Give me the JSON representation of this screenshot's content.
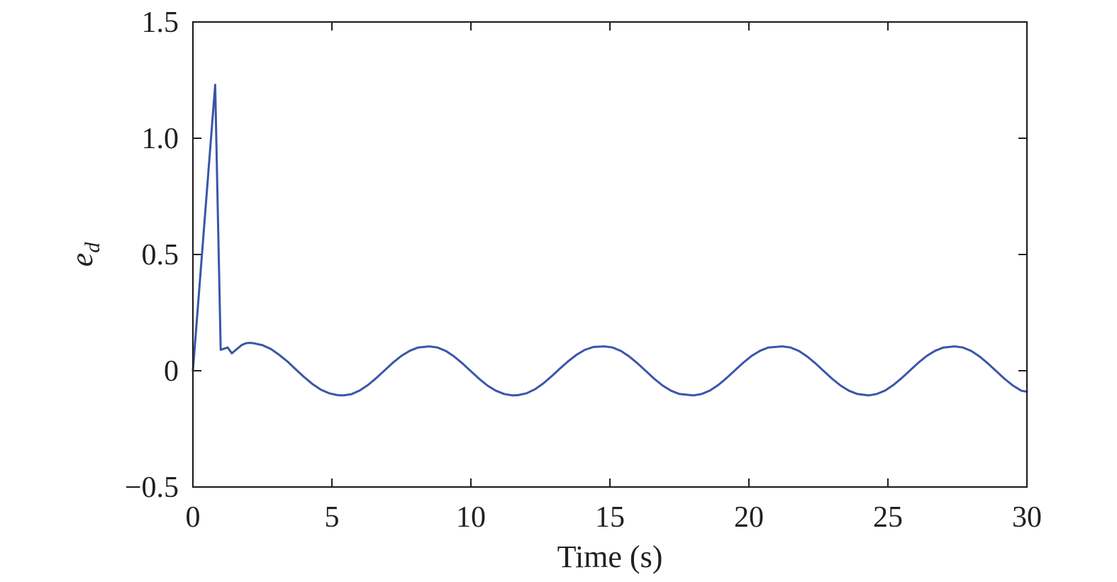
{
  "chart_data": {
    "type": "line",
    "title": "",
    "xlabel": "Time (s)",
    "ylabel_base": "e",
    "ylabel_sub": "d",
    "xlim": [
      0,
      30
    ],
    "ylim": [
      -0.5,
      1.5
    ],
    "grid": false,
    "legend": "none",
    "x_ticks": [
      0,
      5,
      10,
      15,
      20,
      25,
      30
    ],
    "x_tick_labels": [
      "0",
      "5",
      "10",
      "15",
      "20",
      "25",
      "30"
    ],
    "y_ticks": [
      -0.5,
      0,
      0.5,
      1.0,
      1.5
    ],
    "y_tick_labels": [
      "−0.5",
      "0",
      "0.5",
      "1.0",
      "1.5"
    ],
    "line_color": "#3a56a8",
    "series": [
      {
        "x": [
          0,
          0.8,
          1.0,
          1.25,
          1.4,
          1.5,
          1.75,
          1.9,
          2.05,
          2.2,
          2.5,
          2.8,
          3.1,
          3.4,
          3.7,
          4.0,
          4.3,
          4.6,
          4.9,
          5.2,
          5.4,
          5.7,
          6.0,
          6.3,
          6.6,
          6.9,
          7.2,
          7.5,
          7.8,
          8.1,
          8.5,
          8.8,
          9.1,
          9.4,
          9.7,
          10.0,
          10.3,
          10.6,
          10.9,
          11.2,
          11.5,
          11.7,
          12.0,
          12.3,
          12.6,
          12.9,
          13.2,
          13.5,
          13.8,
          14.1,
          14.4,
          14.8,
          15.1,
          15.4,
          15.7,
          16.0,
          16.3,
          16.6,
          16.9,
          17.2,
          17.5,
          18.0,
          18.3,
          18.6,
          18.9,
          19.2,
          19.5,
          19.8,
          20.1,
          20.4,
          20.7,
          21.2,
          21.5,
          21.8,
          22.1,
          22.4,
          22.7,
          23.0,
          23.3,
          23.6,
          23.9,
          24.3,
          24.6,
          24.9,
          25.2,
          25.5,
          25.8,
          26.1,
          26.4,
          26.7,
          27.0,
          27.4,
          27.7,
          28.0,
          28.3,
          28.6,
          28.9,
          29.2,
          29.5,
          29.8,
          30.0
        ],
        "y": [
          0,
          1.23,
          0.09,
          0.1,
          0.075,
          0.085,
          0.11,
          0.118,
          0.12,
          0.118,
          0.11,
          0.094,
          0.069,
          0.04,
          0.006,
          -0.027,
          -0.057,
          -0.081,
          -0.097,
          -0.105,
          -0.106,
          -0.101,
          -0.085,
          -0.061,
          -0.031,
          0.002,
          0.035,
          0.064,
          0.086,
          0.1,
          0.105,
          0.1,
          0.085,
          0.061,
          0.031,
          -0.002,
          -0.035,
          -0.064,
          -0.086,
          -0.1,
          -0.106,
          -0.105,
          -0.097,
          -0.08,
          -0.055,
          -0.024,
          0.009,
          0.041,
          0.069,
          0.09,
          0.102,
          0.105,
          0.1,
          0.085,
          0.061,
          0.031,
          -0.002,
          -0.035,
          -0.064,
          -0.086,
          -0.1,
          -0.106,
          -0.1,
          -0.085,
          -0.061,
          -0.031,
          0.002,
          0.035,
          0.064,
          0.086,
          0.1,
          0.105,
          0.1,
          0.085,
          0.061,
          0.031,
          -0.002,
          -0.035,
          -0.064,
          -0.086,
          -0.1,
          -0.106,
          -0.1,
          -0.085,
          -0.061,
          -0.031,
          0.002,
          0.035,
          0.064,
          0.086,
          0.1,
          0.105,
          0.1,
          0.085,
          0.061,
          0.031,
          -0.002,
          -0.035,
          -0.064,
          -0.086,
          -0.09
        ]
      }
    ]
  }
}
